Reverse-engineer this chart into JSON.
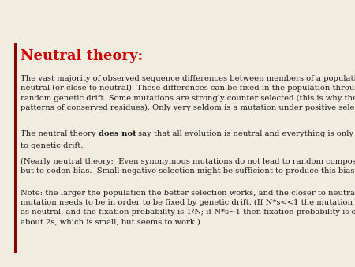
{
  "title": "Neutral theory:",
  "title_color": "#cc0000",
  "title_fontsize": 13,
  "background_color": "#f0ece0",
  "left_bar_color": "#8B0000",
  "text_color": "#1a1a1a",
  "body_fontsize": 7.2,
  "para1": "The vast majority of observed sequence differences between members of a population are\nneutral (or close to neutral). These differences can be fixed in the population through\nrandom genetic drift. Some mutations are strongly counter selected (this is why there are\npatterns of conserved residues). Only very seldom is a mutation under positive selection.",
  "para2_before": "The neutral theory ",
  "para2_bold": "does not",
  "para2_after": " say that all evolution is neutral and everything is only due to\nto genetic drift.",
  "para3": "(Nearly neutral theory:  Even synonymous mutations do not lead to random composition\nbut to codon bias.  Small negative selection might be sufficient to produce this bias. )",
  "para4": "Note: the larger the population the better selection works, and the closer to neutral a\nmutation needs to be in order to be fixed by genetic drift. (If N*s<<1 the mutation behaves\nas neutral, and the fixation probability is 1/N; if N*s~1 then fixation probability is only\nabout 2s, which is small, but seems to work.)"
}
